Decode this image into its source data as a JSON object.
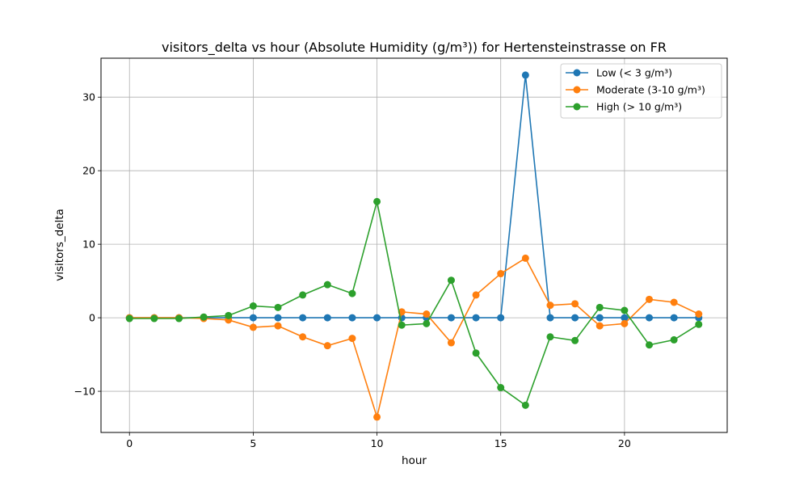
{
  "chart_data": {
    "type": "line",
    "title": "visitors_delta vs hour (Absolute Humidity (g/m³)) for Hertensteinstrasse on FR",
    "xlabel": "hour",
    "ylabel": "visitors_delta",
    "xlim": [
      -1.15,
      24.15
    ],
    "ylim": [
      -15.6,
      35.3
    ],
    "x_ticks": [
      0,
      5,
      10,
      15,
      20
    ],
    "x_tick_labels": [
      "0",
      "5",
      "10",
      "15",
      "20"
    ],
    "y_ticks": [
      -10,
      0,
      10,
      20,
      30
    ],
    "y_tick_labels": [
      "−10",
      "0",
      "10",
      "20",
      "30"
    ],
    "grid": true,
    "legend_position": "top-right",
    "x": [
      0,
      1,
      2,
      3,
      4,
      5,
      6,
      7,
      8,
      9,
      10,
      11,
      12,
      13,
      14,
      15,
      16,
      17,
      18,
      19,
      20,
      21,
      22,
      23
    ],
    "series": [
      {
        "name": "Low (< 3 g/m³)",
        "color": "#1f77b4",
        "values": [
          0,
          0,
          0,
          0,
          0,
          0,
          0,
          0,
          0,
          0,
          0,
          0,
          0,
          0,
          0,
          0,
          33,
          0,
          0,
          0,
          0,
          0,
          0,
          0
        ]
      },
      {
        "name": "Moderate (3-10 g/m³)",
        "color": "#ff7f0e",
        "values": [
          0,
          0,
          0,
          -0.1,
          -0.3,
          -1.3,
          -1.1,
          -2.6,
          -3.8,
          -2.8,
          -13.5,
          0.8,
          0.5,
          -3.4,
          3.1,
          6.0,
          8.1,
          1.7,
          1.9,
          -1.1,
          -0.8,
          2.5,
          2.1,
          0.5
        ]
      },
      {
        "name": "High (> 10 g/m³)",
        "color": "#2ca02c",
        "values": [
          -0.1,
          -0.1,
          -0.1,
          0.1,
          0.3,
          1.6,
          1.4,
          3.1,
          4.5,
          3.3,
          15.8,
          -1.0,
          -0.8,
          5.1,
          -4.8,
          -9.5,
          -11.9,
          -2.6,
          -3.1,
          1.4,
          1.0,
          -3.7,
          -3.0,
          -0.9
        ]
      }
    ]
  }
}
